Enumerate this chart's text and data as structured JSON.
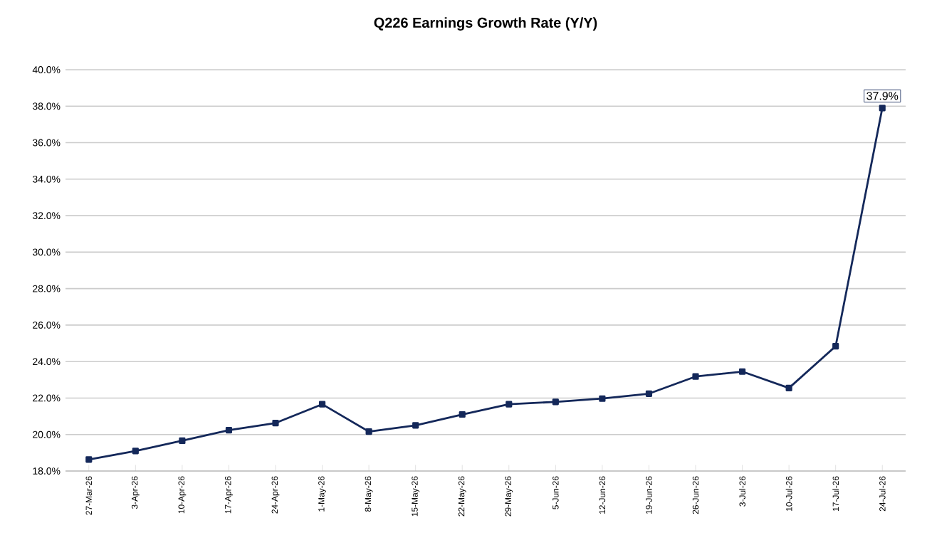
{
  "chart_data": {
    "type": "line",
    "title": "Q226 Earnings Growth Rate (Y/Y)",
    "categories": [
      "27-Mar-26",
      "3-Apr-26",
      "10-Apr-26",
      "17-Apr-26",
      "24-Apr-26",
      "1-May-26",
      "8-May-26",
      "15-May-26",
      "22-May-26",
      "29-May-26",
      "5-Jun-26",
      "12-Jun-26",
      "19-Jun-26",
      "26-Jun-26",
      "3-Jul-26",
      "10-Jul-26",
      "17-Jul-26",
      "24-Jul-26"
    ],
    "values": [
      18.63,
      19.1,
      19.66,
      20.24,
      20.63,
      21.66,
      20.16,
      20.5,
      21.1,
      21.66,
      21.79,
      21.97,
      22.24,
      23.18,
      23.45,
      22.55,
      24.84,
      37.9
    ],
    "value_labels": [
      null,
      null,
      null,
      null,
      null,
      null,
      null,
      null,
      null,
      null,
      null,
      null,
      null,
      null,
      null,
      null,
      null,
      "37.9%"
    ],
    "color": "#14285a",
    "marker": "square",
    "line_style": "solid",
    "grid": "y",
    "ylim": [
      18,
      40
    ],
    "yticks": [
      {
        "value": 18,
        "label": "18.0%"
      },
      {
        "value": 20,
        "label": "20.0%"
      },
      {
        "value": 22,
        "label": "22.0%"
      },
      {
        "value": 24,
        "label": "24.0%"
      },
      {
        "value": 26,
        "label": "26.0%"
      },
      {
        "value": 28,
        "label": "28.0%"
      },
      {
        "value": 30,
        "label": "30.0%"
      },
      {
        "value": 32,
        "label": "32.0%"
      },
      {
        "value": 34,
        "label": "34.0%"
      },
      {
        "value": 36,
        "label": "36.0%"
      },
      {
        "value": 38,
        "label": "38.0%"
      },
      {
        "value": 40,
        "label": "40.0%"
      }
    ]
  }
}
